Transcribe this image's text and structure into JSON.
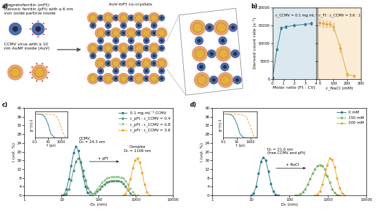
{
  "panel_labels": [
    "a)",
    "b)",
    "c)",
    "d)"
  ],
  "diagram": {
    "magnetoferritin": "Magnetoferritin (mFt):\nCationic ferritin (pFt) with a 6 nm\niron oxide particle inside",
    "ccmv": "CCMV virus with a 10\nnm AuNP inside (AuV)",
    "crystal": "AuV-mFt co-crystals"
  },
  "chart_data": [
    {
      "type": "line",
      "x_label": "Molar ratio (Ft : CV)",
      "y_label": "Derived count rate (s⁻¹)",
      "annotation": "c_CCMV = 0.1 mg mL⁻¹",
      "x": [
        0,
        0.4,
        0.8,
        1.2,
        2,
        3,
        3.6
      ],
      "values": [
        400,
        8300,
        14200,
        14600,
        15000,
        15300,
        15500
      ],
      "errors": [
        100,
        300,
        400,
        300,
        300,
        300,
        400
      ],
      "color": "#2a7b8b",
      "marker": "circle",
      "xlim": [
        0,
        4
      ],
      "xticks": [
        0,
        1,
        2,
        3,
        4
      ],
      "ylim": [
        0,
        20000
      ],
      "yticks": [
        0,
        5000,
        10000,
        15000,
        20000
      ]
    },
    {
      "type": "line",
      "x_label": "c_NaCl (mM)",
      "annotation": "c_Ft : c_CCMV = 3.6 : 1",
      "x": [
        0,
        25,
        50,
        75,
        100,
        150,
        200,
        250
      ],
      "values": [
        15800,
        15500,
        15300,
        15400,
        14600,
        8700,
        1200,
        800
      ],
      "errors": [
        900,
        900,
        800,
        800,
        1000,
        1000,
        500,
        300
      ],
      "color": "#e8a33d",
      "marker": "circle",
      "xlim": [
        -15,
        300
      ],
      "xticks": [
        0,
        100,
        200,
        300
      ],
      "ylim": [
        0,
        20000
      ],
      "yticks": [
        0,
        5000,
        10000,
        15000,
        20000
      ],
      "tick_labels": "x"
    },
    {
      "type": "line",
      "log": "x",
      "x_label": "Dₕ (nm)",
      "y_label": "I (vol. %)",
      "xlim": [
        1,
        10000
      ],
      "xticks": [
        1,
        10,
        100,
        1000,
        10000
      ],
      "ylim": [
        0,
        40
      ],
      "yticks": [
        0,
        4,
        8,
        12,
        16,
        20,
        24,
        28,
        32,
        36,
        40
      ],
      "legend": "upper right",
      "annotations": [
        "CCMV:\nDₕ = 24.3 nm",
        "Complex\nDₕ = 1106 nm",
        "+ pFt"
      ],
      "series": [
        {
          "name": "0.1 mg mL⁻¹ CCMV",
          "color": "#2a7b8b",
          "marker": "circle",
          "line_style": "solid",
          "x": [
            10.1,
            11.7,
            13.5,
            15.7,
            18.2,
            21.0,
            24.4,
            28.2,
            32.7,
            37.8,
            43.8,
            50.7,
            58.8,
            68.1
          ],
          "values": [
            0,
            0.5,
            2.8,
            7.5,
            13.5,
            19.5,
            22.5,
            20.5,
            15,
            9,
            4,
            1.2,
            0.2,
            0
          ]
        },
        {
          "name": "c_pFt : c_CCMV = 0.4",
          "color": "#4f9670",
          "marker": "circle",
          "line_style": "solid",
          "x": [
            11.7,
            13.5,
            15.7,
            18.2,
            21.0,
            24.4,
            28.2,
            32.7,
            37.8,
            43.8,
            50.7,
            58.8,
            68.1,
            79,
            91,
            106,
            122,
            142,
            164,
            190,
            220,
            255,
            295,
            342,
            396,
            458,
            530,
            614,
            711,
            823
          ],
          "values": [
            0,
            0.8,
            3,
            7,
            11.5,
            15.5,
            17,
            15.5,
            11.5,
            7,
            3.5,
            1.5,
            0.8,
            1,
            2,
            3,
            4.2,
            5.2,
            6,
            6.5,
            6.7,
            6.8,
            6.8,
            6.7,
            6.3,
            5.5,
            4.2,
            2.5,
            1,
            0
          ]
        },
        {
          "name": "c_pFt : c_CCMV = 0.8",
          "color": "#9cc98a",
          "marker": "circle",
          "line_style": "dashed",
          "x": [
            58.8,
            68.1,
            79,
            91,
            106,
            122,
            142,
            164,
            190,
            220,
            255,
            295,
            342,
            396,
            458,
            530,
            614,
            711,
            823,
            953,
            1104
          ],
          "values": [
            0,
            0.5,
            1.5,
            3,
            4.5,
            6,
            7,
            7.8,
            8.3,
            8.6,
            8.7,
            8.7,
            8.6,
            8.3,
            7.8,
            6.8,
            5.2,
            3.2,
            1.5,
            0.4,
            0
          ]
        },
        {
          "name": "c_pFt : c_CCMV = 3.6",
          "color": "#f0a830",
          "marker": "circle",
          "line_style": "solid",
          "x": [
            459,
            530,
            614,
            711,
            823,
            953,
            1104,
            1278,
            1480,
            1714,
            1985,
            2299
          ],
          "values": [
            0,
            0.8,
            3,
            7.5,
            12.5,
            16,
            17,
            15,
            10.5,
            5,
            1.5,
            0
          ]
        }
      ],
      "inset": {
        "type": "line",
        "log": "x",
        "x_label": "τ (μs)",
        "y_label": "g⁽²⁾(τ)-1",
        "xlim": [
          0.1,
          10000
        ],
        "xticks": [
          0.1,
          10,
          1000
        ],
        "ylim": [
          0,
          1.1
        ],
        "yticks": [],
        "tick_labels": "x",
        "series": [
          {
            "color": "#2a7b8b",
            "line_style": "solid",
            "marker": "none",
            "x": [
              0.1,
              1,
              3,
              10,
              30,
              100,
              300,
              10000
            ],
            "values": [
              1,
              0.98,
              0.9,
              0.6,
              0.15,
              0.01,
              0,
              0
            ]
          },
          {
            "color": "#f0a830",
            "line_style": "dashed",
            "marker": "none",
            "x": [
              0.1,
              10,
              100,
              300,
              1000,
              3000,
              10000
            ],
            "values": [
              1,
              0.99,
              0.95,
              0.85,
              0.45,
              0.08,
              0
            ]
          }
        ]
      }
    },
    {
      "type": "line",
      "log": "x",
      "x_label": "Dₕ (nm)",
      "y_label": "I (vol. %)",
      "xlim": [
        1,
        10000
      ],
      "xticks": [
        1,
        10,
        100,
        1000,
        10000
      ],
      "ylim": [
        0,
        40
      ],
      "yticks": [
        0,
        4,
        8,
        12,
        16,
        20,
        24,
        28,
        32,
        36,
        40
      ],
      "legend": "upper right",
      "annotations": [
        "Dₕ = 21.0 nm\n(free CCMV and pFt)",
        "+ NaCl"
      ],
      "series": [
        {
          "name": "0 mM",
          "color": "#2a7b8b",
          "marker": "circle",
          "line_style": "solid",
          "x": [
            10.1,
            11.7,
            13.5,
            15.7,
            18.2,
            21.0,
            24.4,
            28.2,
            32.7,
            37.8,
            43.8,
            50.7
          ],
          "values": [
            0,
            1,
            4,
            10,
            15.5,
            17.5,
            16,
            11,
            5.5,
            1.8,
            0.3,
            0
          ]
        },
        {
          "name": "150 mM",
          "color": "#7db56c",
          "marker": "circle",
          "line_style": "solid",
          "x": [
            142,
            164,
            190,
            220,
            255,
            295,
            342,
            396,
            458,
            530,
            614,
            711,
            823,
            953,
            1104,
            1278,
            1480,
            1714,
            1985
          ],
          "values": [
            0,
            0.2,
            0.6,
            1.5,
            3,
            5,
            7.5,
            10,
            12,
            13.5,
            14,
            13.5,
            12,
            9,
            6,
            3,
            1.2,
            0.3,
            0
          ]
        },
        {
          "name": "200 mM",
          "color": "#f0a830",
          "marker": "circle",
          "line_style": "solid",
          "x": [
            459,
            530,
            614,
            711,
            823,
            953,
            1104,
            1278,
            1480,
            1714,
            1985,
            2299,
            2661
          ],
          "values": [
            0,
            0.5,
            2,
            5,
            9.5,
            14,
            17,
            16.5,
            13,
            8,
            3.5,
            1,
            0
          ]
        }
      ],
      "inset": {
        "type": "line",
        "log": "x",
        "x_label": "τ (μs)",
        "y_label": "g⁽²⁾(τ)-1",
        "xlim": [
          0.1,
          10000
        ],
        "xticks": [
          0.1,
          10,
          1000
        ],
        "ylim": [
          0,
          1.1
        ],
        "yticks": [],
        "tick_labels": "x",
        "series": [
          {
            "color": "#2a7b8b",
            "line_style": "solid",
            "marker": "none",
            "x": [
              0.1,
              1,
              3,
              10,
              30,
              100,
              300,
              10000
            ],
            "values": [
              1,
              0.98,
              0.9,
              0.6,
              0.15,
              0.01,
              0,
              0
            ]
          },
          {
            "color": "#f0a830",
            "line_style": "dashed",
            "marker": "none",
            "x": [
              0.1,
              10,
              100,
              300,
              1000,
              3000,
              10000
            ],
            "values": [
              1,
              0.99,
              0.95,
              0.85,
              0.45,
              0.08,
              0
            ]
          }
        ]
      }
    }
  ]
}
